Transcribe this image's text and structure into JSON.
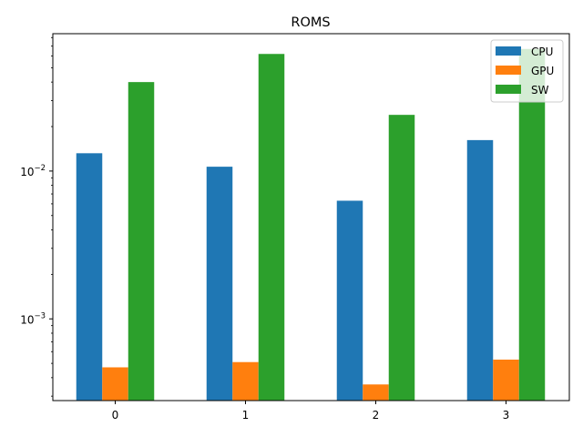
{
  "chart_data": {
    "type": "bar",
    "title": "ROMS",
    "xlabel": "",
    "ylabel": "",
    "yscale": "log",
    "ylim": [
      0.00028,
      0.085
    ],
    "categories": [
      "0",
      "1",
      "2",
      "3"
    ],
    "series": [
      {
        "name": "CPU",
        "color": "#1f77b4",
        "values": [
          0.0132,
          0.0107,
          0.0063,
          0.0162
        ]
      },
      {
        "name": "GPU",
        "color": "#ff7f0e",
        "values": [
          0.00047,
          0.00051,
          0.00036,
          0.00053
        ]
      },
      {
        "name": "SW",
        "color": "#2ca02c",
        "values": [
          0.04,
          0.062,
          0.024,
          0.067
        ]
      }
    ],
    "y_major_ticks": [
      {
        "value": 0.01,
        "mantissa": "10",
        "exponent": "−2"
      },
      {
        "value": 0.001,
        "mantissa": "10",
        "exponent": "−3"
      }
    ],
    "legend_position": "top-right",
    "grid": false
  }
}
